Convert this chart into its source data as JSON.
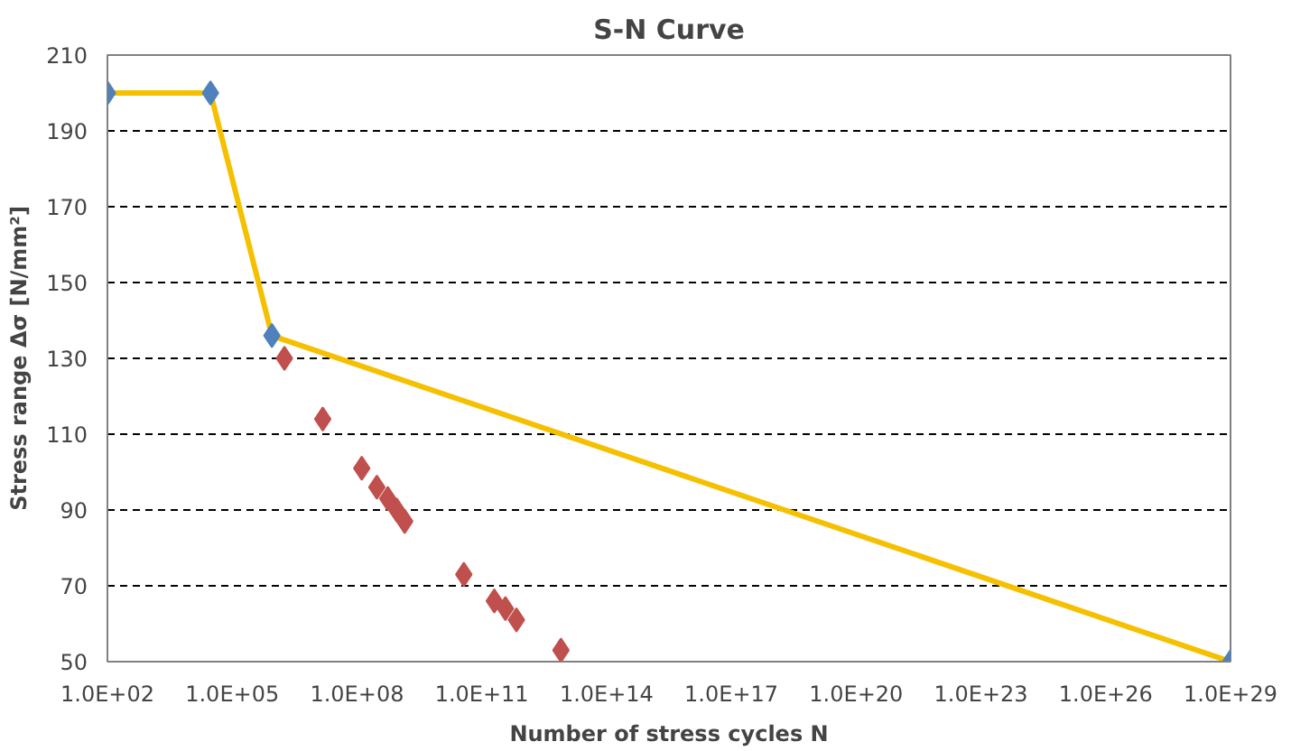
{
  "chart_data": {
    "type": "scatter",
    "title": "S-N Curve",
    "xlabel": "Number of stress cycles N",
    "ylabel": "Stress range Δσ [N/mm²]",
    "log": "x",
    "grid": "y",
    "marker": "diamond",
    "xlim": [
      100,
      1e+29
    ],
    "ylim": [
      50,
      210
    ],
    "xticks": [
      {
        "value": 100.0,
        "label": "1.0E+02"
      },
      {
        "value": 100000.0,
        "label": "1.0E+05"
      },
      {
        "value": 100000000.0,
        "label": "1.0E+08"
      },
      {
        "value": 100000000000.0,
        "label": "1.0E+11"
      },
      {
        "value": 100000000000000.0,
        "label": "1.0E+14"
      },
      {
        "value": 1e+17,
        "label": "1.0E+17"
      },
      {
        "value": 1e+20,
        "label": "1.0E+20"
      },
      {
        "value": 1e+23,
        "label": "1.0E+23"
      },
      {
        "value": 1e+26,
        "label": "1.0E+26"
      },
      {
        "value": 1e+29,
        "label": "1.0E+29"
      }
    ],
    "yticks": [
      50,
      70,
      90,
      110,
      130,
      150,
      170,
      190,
      210
    ],
    "series": [
      {
        "type": "line",
        "marker": "none",
        "color": "#f5c000",
        "x": [
          100.0,
          30000.0,
          900000.0,
          1e+29
        ],
        "values": [
          200,
          200,
          136,
          50
        ]
      },
      {
        "color": "#4f81bd",
        "x": [
          100.0,
          30000.0,
          900000.0,
          1e+29
        ],
        "values": [
          200,
          200,
          136,
          50
        ]
      },
      {
        "color": "#c0504d",
        "x": [
          1800000.0,
          15000000.0,
          130000000.0,
          300000000.0,
          550000000.0,
          900000000.0,
          1400000000.0,
          37000000000.0,
          200000000000.0,
          370000000000.0,
          680000000000.0,
          8000000000000.0
        ],
        "values": [
          130,
          114,
          101,
          96,
          93,
          90,
          87,
          73,
          66,
          64,
          61,
          53
        ]
      }
    ]
  }
}
